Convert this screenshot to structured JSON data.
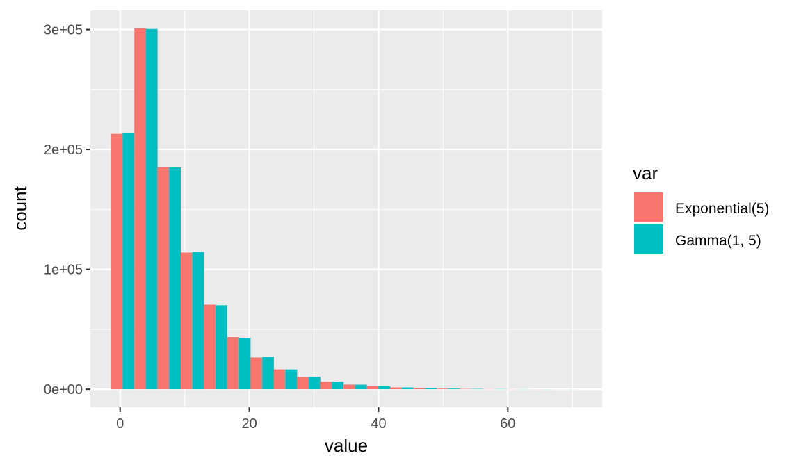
{
  "chart_data": {
    "type": "bar",
    "xlabel": "value",
    "ylabel": "count",
    "xlim": [
      -4.6,
      74.6
    ],
    "ylim": [
      -15000,
      316000
    ],
    "bin_width": 3.6,
    "x_ticks": [
      {
        "value": 0,
        "label": "0"
      },
      {
        "value": 20,
        "label": "20"
      },
      {
        "value": 40,
        "label": "40"
      },
      {
        "value": 60,
        "label": "60"
      }
    ],
    "x_minor_ticks": [
      10,
      30,
      50,
      70
    ],
    "y_ticks": [
      {
        "value": 0,
        "label": "0e+00"
      },
      {
        "value": 100000,
        "label": "1e+05"
      },
      {
        "value": 200000,
        "label": "2e+05"
      },
      {
        "value": 300000,
        "label": "3e+05"
      }
    ],
    "y_minor_ticks": [
      50000,
      150000,
      250000
    ],
    "bin_centers": [
      0.4,
      4.0,
      7.6,
      11.2,
      14.8,
      18.4,
      22.0,
      25.6,
      29.2,
      32.8,
      36.4,
      40.0,
      43.6,
      47.2,
      50.8,
      54.4,
      58.0,
      61.6,
      65.2,
      68.8
    ],
    "series": [
      {
        "name": "Exponential(5)",
        "color": "#F8766D",
        "values": [
          213000,
          301000,
          185000,
          114000,
          70500,
          43500,
          26500,
          16500,
          10200,
          6300,
          3900,
          2400,
          1500,
          900,
          550,
          340,
          210,
          130,
          80,
          50
        ]
      },
      {
        "name": "Gamma(1, 5)",
        "color": "#00BFC4",
        "values": [
          213500,
          300500,
          185000,
          114500,
          70000,
          43000,
          27000,
          16500,
          10300,
          6300,
          3800,
          2400,
          1500,
          900,
          560,
          340,
          210,
          130,
          80,
          50
        ]
      }
    ],
    "legend": {
      "title": "var",
      "position": "right"
    },
    "grid": true,
    "background": "#EBEBEB"
  }
}
